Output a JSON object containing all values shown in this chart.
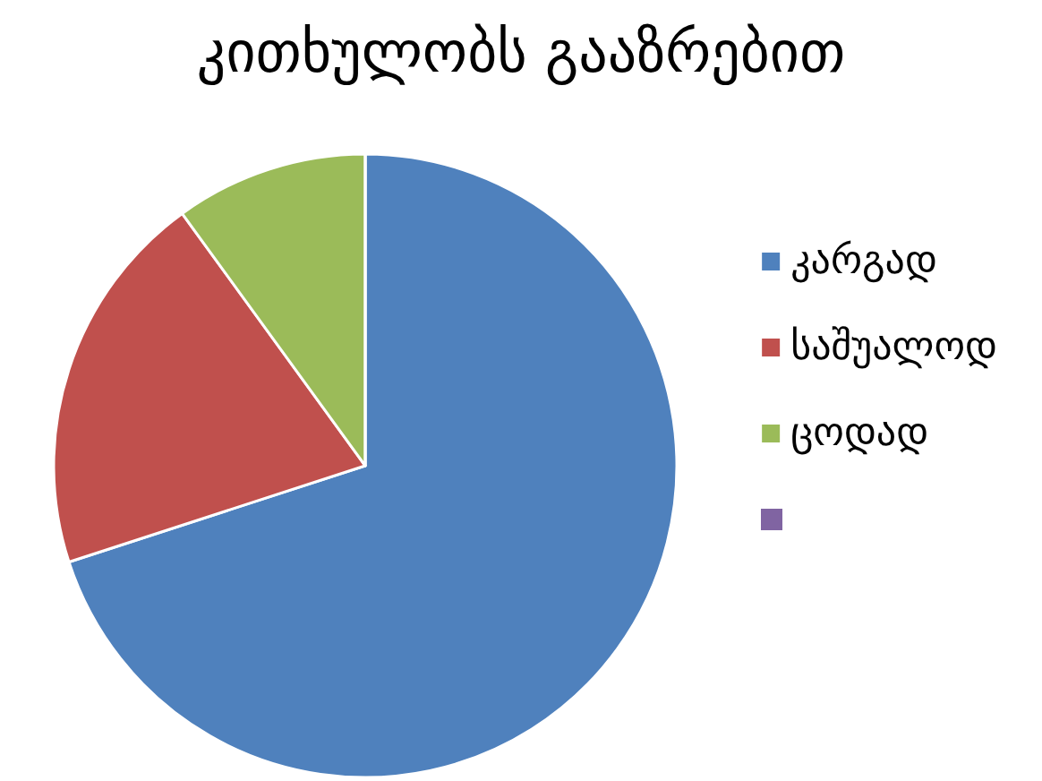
{
  "chart_data": {
    "type": "pie",
    "title": "კითხულობს გააზრებით",
    "categories": [
      "კარგად",
      "საშუალოდ",
      "ცოდად",
      null
    ],
    "values": [
      70,
      20,
      10,
      0
    ],
    "colors": [
      "#4f81bd",
      "#c0504d",
      "#9bbb59",
      "#8064a2"
    ],
    "legend": "right"
  }
}
